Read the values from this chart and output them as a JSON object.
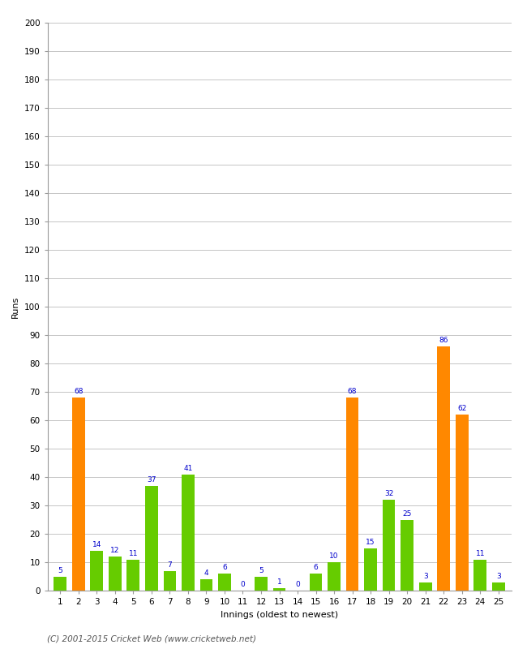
{
  "xlabel": "Innings (oldest to newest)",
  "ylabel": "Runs",
  "innings": [
    1,
    2,
    3,
    4,
    5,
    6,
    7,
    8,
    9,
    10,
    11,
    12,
    13,
    14,
    15,
    16,
    17,
    18,
    19,
    20,
    21,
    22,
    23,
    24,
    25
  ],
  "values": [
    5,
    68,
    14,
    12,
    11,
    37,
    7,
    41,
    4,
    6,
    0,
    5,
    1,
    0,
    6,
    10,
    68,
    15,
    32,
    25,
    3,
    86,
    62,
    11,
    3
  ],
  "orange_threshold": 50,
  "bar_color_default": "#66cc00",
  "bar_color_highlight": "#ff8800",
  "label_color": "#0000cc",
  "ylim": [
    0,
    200
  ],
  "yticks": [
    0,
    10,
    20,
    30,
    40,
    50,
    60,
    70,
    80,
    90,
    100,
    110,
    120,
    130,
    140,
    150,
    160,
    170,
    180,
    190,
    200
  ],
  "grid_color": "#bbbbbb",
  "background_color": "#ffffff",
  "footer": "(C) 2001-2015 Cricket Web (www.cricketweb.net)",
  "label_fontsize": 6.5,
  "axis_label_fontsize": 8,
  "tick_fontsize": 7.5,
  "footer_fontsize": 7.5
}
